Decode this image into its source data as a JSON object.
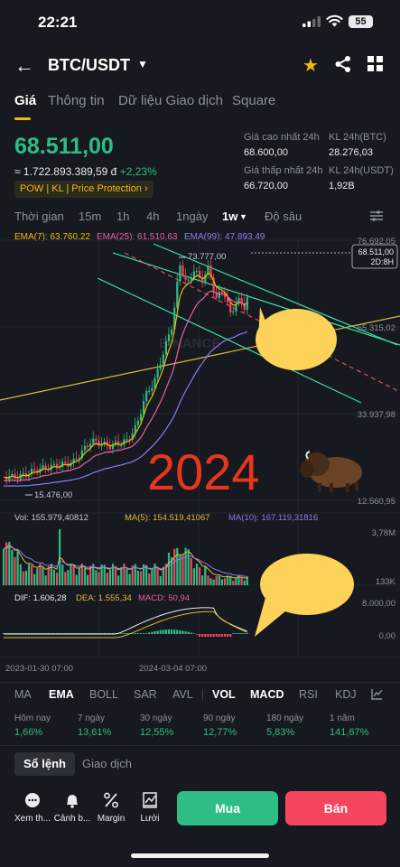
{
  "status_bar": {
    "time": "22:21",
    "battery": "55"
  },
  "header": {
    "title": "BTC/USDT",
    "icons": [
      "back-arrow-icon",
      "chevron-down-icon",
      "star-icon",
      "share-icon",
      "grid-icon"
    ]
  },
  "tabs": [
    {
      "label": "Giá"
    },
    {
      "label": "Thông tin"
    },
    {
      "label": "Dữ liệu Giao dịch"
    },
    {
      "label": "Square"
    }
  ],
  "price": {
    "last": "68.511,00",
    "fiat": "≈ 1.722.893.389,59 đ",
    "change": "+2,23%",
    "tags": "POW  |  KL  |  Price Protection  ›"
  },
  "stats": {
    "high_label": "Giá cao nhất 24h",
    "high_value": "68.600,00",
    "low_label": "Giá thấp nhất 24h",
    "low_value": "66.720,00",
    "vol_btc_label": "KL 24h(BTC)",
    "vol_btc_value": "28.276,03",
    "vol_usdt_label": "KL 24h(USDT)",
    "vol_usdt_value": "1,92B"
  },
  "timeframes": [
    {
      "label": "Thời gian"
    },
    {
      "label": "15m"
    },
    {
      "label": "1h"
    },
    {
      "label": "4h"
    },
    {
      "label": "1ngày"
    },
    {
      "label": "1w"
    },
    {
      "label": "Độ sâu"
    }
  ],
  "chart": {
    "ema_legend": {
      "ema7": "EMA(7): 63.760,22",
      "ema25": "EMA(25): 61.510,63",
      "ema99": "EMA(99): 47.893,49"
    },
    "price_axis": [
      "76.692,05",
      "55.315,02",
      "33.937,98",
      "12.560,95"
    ],
    "high_marker": "73.777,00",
    "low_marker": "15.476,00",
    "current_price_tag": "68.511,00",
    "countdown": "2D:8H",
    "annotation_text": "2024",
    "watermark": "BINANCE",
    "vol_legend": {
      "vol": "Vol: 155.979,40812",
      "ma5": "MA(5): 154.519,41067",
      "ma10": "MA(10): 167.119,31816"
    },
    "vol_axis": [
      "3,78M",
      "133K"
    ],
    "macd_legend": {
      "dif": "DIF: 1.606,28",
      "dea": "DEA: 1.555,34",
      "macd": "MACD: 50,94"
    },
    "macd_axis": [
      "8.000,00",
      "0,00"
    ],
    "dates": [
      "2023-01-30 07:00",
      "2024-03-04 07:00"
    ],
    "colors": {
      "up": "#2ebd85",
      "down": "#f6465d",
      "ema7": "#f0b90b",
      "ema25": "#e85fa8",
      "ema99": "#8c7cf0",
      "trend": "#3ddfa8"
    }
  },
  "indicators": [
    {
      "label": "MA"
    },
    {
      "label": "EMA"
    },
    {
      "label": "BOLL"
    },
    {
      "label": "SAR"
    },
    {
      "label": "AVL"
    },
    {
      "label": "VOL"
    },
    {
      "label": "MACD"
    },
    {
      "label": "RSI"
    },
    {
      "label": "KDJ"
    }
  ],
  "performance": [
    {
      "label": "Hôm nay",
      "value": "1,66%"
    },
    {
      "label": "7 ngày",
      "value": "13,61%"
    },
    {
      "label": "30 ngày",
      "value": "12,55%"
    },
    {
      "label": "90 ngày",
      "value": "12,77%"
    },
    {
      "label": "180 ngày",
      "value": "5,83%"
    },
    {
      "label": "1 năm",
      "value": "141,67%"
    }
  ],
  "order_tabs": [
    {
      "label": "Sổ lệnh"
    },
    {
      "label": "Giao dịch"
    }
  ],
  "toolbar": [
    {
      "label": "Xem th...",
      "icon": "chat-icon"
    },
    {
      "label": "Cảnh b...",
      "icon": "bell-icon"
    },
    {
      "label": "Margin",
      "icon": "percent-icon"
    },
    {
      "label": "Lưới",
      "icon": "grid-bot-icon"
    }
  ],
  "actions": {
    "buy": "Mua",
    "sell": "Bán"
  }
}
